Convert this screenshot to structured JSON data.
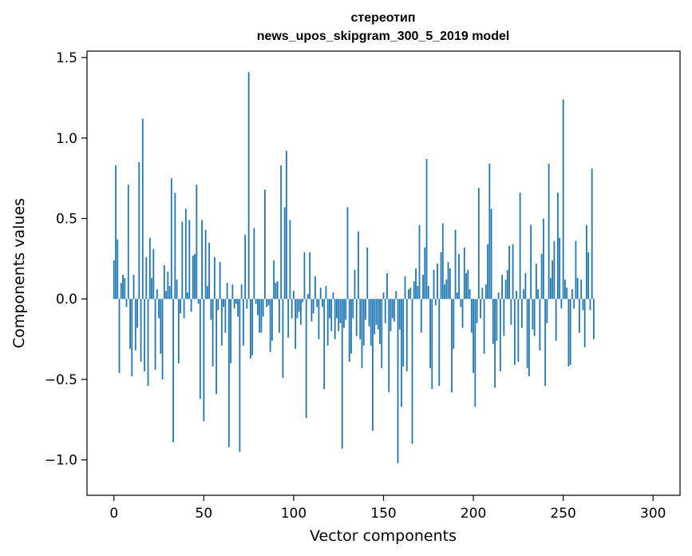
{
  "chart_data": {
    "type": "bar",
    "title": [
      "стереотип",
      "news_upos_skipgram_300_5_2019 model"
    ],
    "xlabel": "Vector components",
    "ylabel": "Components values",
    "xlim": [
      -15,
      315
    ],
    "ylim": [
      -1.22,
      1.54
    ],
    "xticks": [
      0,
      50,
      100,
      150,
      200,
      250,
      300
    ],
    "xtick_labels": [
      "0",
      "50",
      "100",
      "150",
      "200",
      "250",
      "300"
    ],
    "yticks": [
      -1.0,
      -0.5,
      0.0,
      0.5,
      1.0,
      1.5
    ],
    "ytick_labels": [
      "−1.0",
      "−0.5",
      "0.0",
      "0.5",
      "1.0",
      "1.5"
    ],
    "bar_color": "#1f77b4",
    "grid": false,
    "x_start": 0,
    "values": [
      0.24,
      0.83,
      0.37,
      -0.46,
      0.1,
      0.15,
      0.13,
      -0.05,
      0.71,
      -0.31,
      -0.48,
      0.15,
      -0.32,
      -0.18,
      0.85,
      -0.39,
      1.12,
      -0.45,
      0.26,
      -0.54,
      0.38,
      0.13,
      0.31,
      -0.44,
      0.06,
      -0.12,
      -0.34,
      -0.5,
      0.21,
      0.05,
      0.17,
      0.08,
      0.75,
      -0.89,
      0.66,
      0.12,
      -0.4,
      -0.09,
      0.48,
      -0.12,
      0.56,
      0.04,
      0.49,
      -0.08,
      0.27,
      0.28,
      0.71,
      -0.03,
      -0.62,
      0.49,
      -0.76,
      0.43,
      0.08,
      0.35,
      -0.13,
      -0.42,
      0.26,
      -0.59,
      -0.07,
      0.23,
      -0.29,
      -0.05,
      -0.21,
      0.1,
      -0.92,
      -0.4,
      0.09,
      -0.06,
      -0.03,
      -0.11,
      -0.95,
      0.09,
      -0.29,
      0.4,
      -0.06,
      1.41,
      -0.37,
      -0.35,
      0.44,
      -0.03,
      -0.1,
      -0.21,
      -0.21,
      -0.11,
      0.68,
      -0.05,
      -0.04,
      -0.33,
      -0.26,
      0.24,
      0.1,
      0.11,
      -0.21,
      0.83,
      -0.49,
      0.57,
      0.92,
      -0.24,
      0.49,
      -0.12,
      0.05,
      -0.31,
      -0.12,
      -0.08,
      -0.16,
      -0.02,
      0.29,
      -0.74,
      0.03,
      0.29,
      -0.14,
      -0.09,
      0.14,
      -0.05,
      -0.25,
      0.07,
      -0.05,
      -0.56,
      0.08,
      -0.29,
      -0.12,
      -0.2,
      0.04,
      -0.25,
      -0.12,
      -0.2,
      -0.15,
      -0.93,
      -0.18,
      -0.13,
      0.57,
      -0.39,
      -0.34,
      -0.12,
      0.18,
      -0.23,
      0.42,
      -0.25,
      -0.43,
      -0.29,
      -0.13,
      0.32,
      -0.17,
      -0.29,
      -0.82,
      -0.22,
      -0.16,
      -0.19,
      -0.28,
      -0.43,
      0.04,
      -0.15,
      0.16,
      -0.58,
      -0.2,
      -0.12,
      -0.14,
      0.05,
      -1.02,
      -0.19,
      -0.67,
      -0.42,
      0.14,
      -0.45,
      0.06,
      0.07,
      -0.9,
      0.11,
      0.19,
      0.08,
      0.46,
      -0.21,
      0.15,
      0.32,
      0.87,
      0.08,
      -0.43,
      -0.56,
      0.18,
      -0.04,
      0.22,
      -0.54,
      0.29,
      0.47,
      0.09,
      0.12,
      0.23,
      0.19,
      -0.58,
      -0.31,
      0.43,
      0.04,
      0.28,
      -0.05,
      -0.18,
      0.32,
      0.16,
      0.18,
      0.06,
      -0.21,
      -0.46,
      -0.67,
      -0.15,
      0.69,
      -0.12,
      0.07,
      -0.34,
      0.09,
      0.34,
      0.84,
      0.56,
      -0.28,
      -0.55,
      -0.26,
      0.04,
      -0.45,
      0.15,
      -0.23,
      0.12,
      0.18,
      0.33,
      -0.16,
      0.34,
      -0.41,
      0.05,
      -0.39,
      0.66,
      -0.18,
      0.06,
      0.16,
      -0.43,
      -0.48,
      0.46,
      -0.19,
      -0.23,
      0.22,
      0.06,
      -0.32,
      0.28,
      0.5,
      -0.54,
      -0.15,
      0.84,
      0.13,
      0.24,
      0.36,
      -0.26,
      0.66,
      0.38,
      -0.06,
      1.24,
      0.12,
      0.07,
      -0.42,
      -0.41,
      0.06,
      -0.06,
      0.36,
      0.13,
      -0.21,
      0.12,
      -0.07,
      -0.3,
      0.46,
      0.29,
      -0.07,
      0.81,
      -0.25
    ]
  }
}
